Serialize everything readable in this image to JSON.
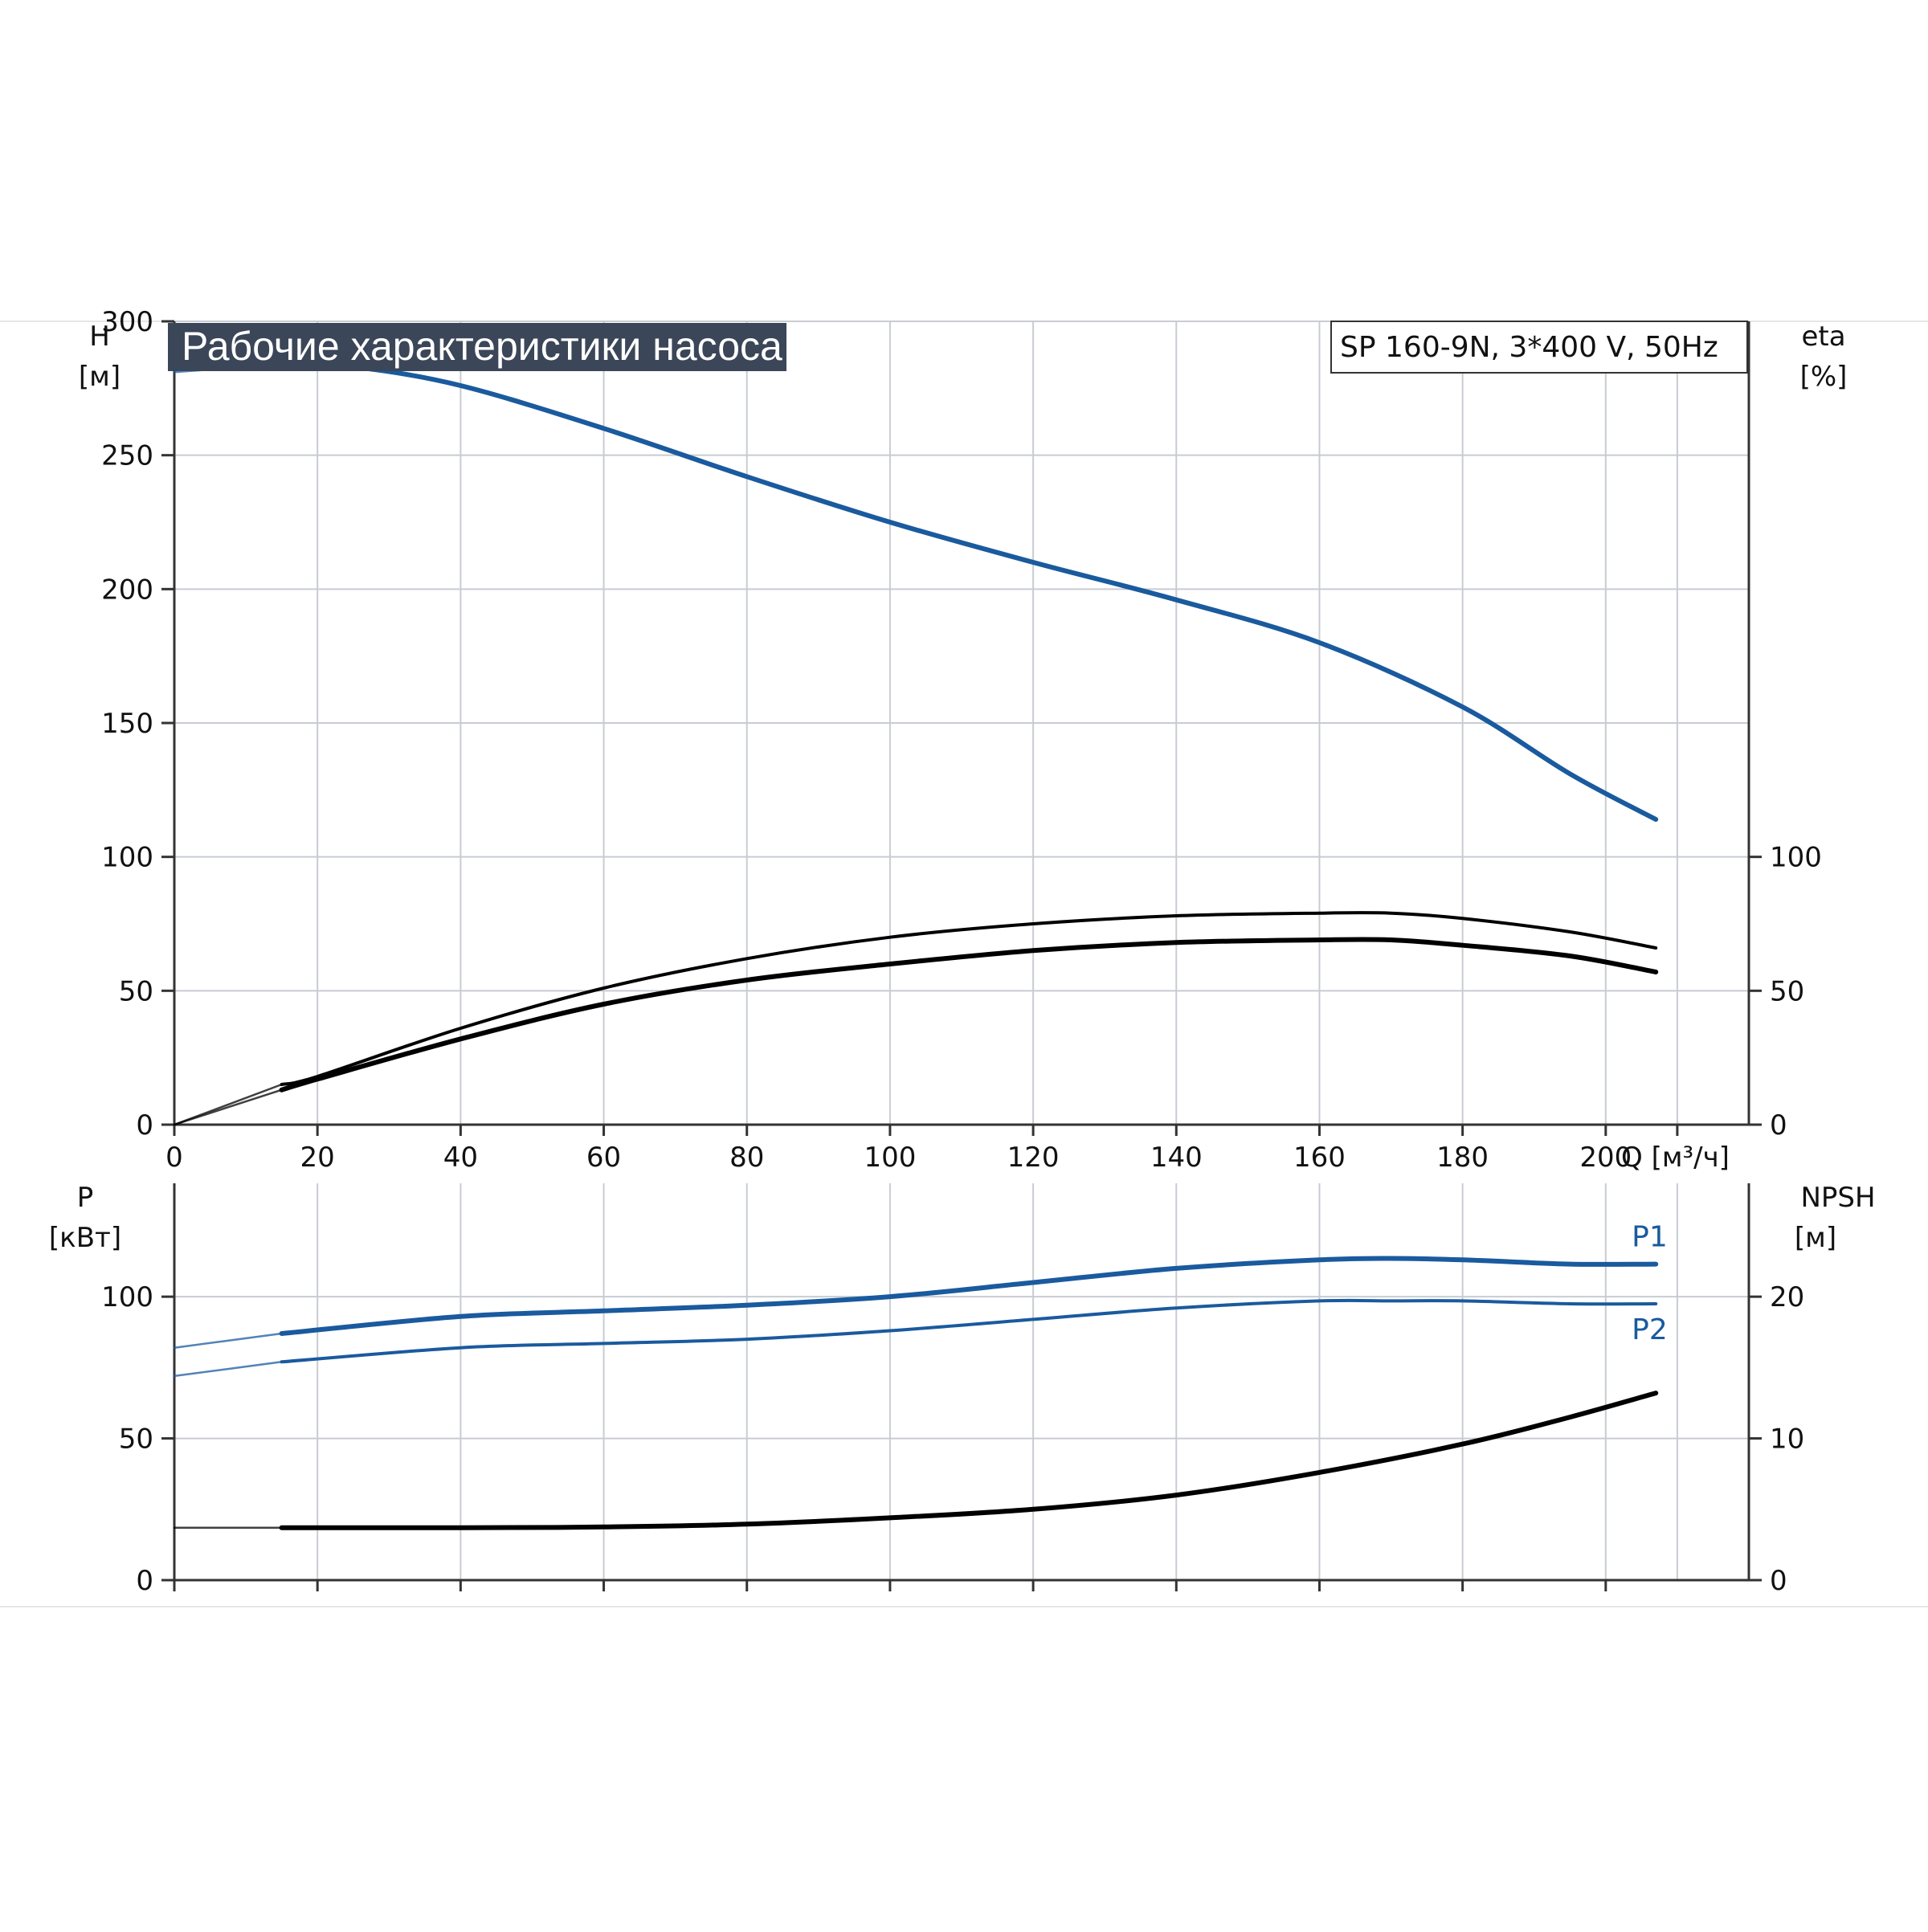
{
  "chart_data": [
    {
      "type": "line",
      "title": "Рабочие характеристики насоса",
      "model_label": "SP 160-9N, 3*400 V, 50Hz",
      "xlabel": "Q [м³/ч]",
      "xlim": [
        0,
        220
      ],
      "x_ticks": [
        "0",
        "20",
        "40",
        "60",
        "80",
        "100",
        "120",
        "140",
        "160",
        "180",
        "200"
      ],
      "y_left": {
        "label_line1": "H",
        "label_line2": "[м]",
        "lim": [
          0,
          300
        ],
        "ticks": [
          "0",
          "50",
          "100",
          "150",
          "200",
          "250",
          "300"
        ]
      },
      "y_right": {
        "label_line1": "eta",
        "label_line2": "[%]",
        "lim": [
          0,
          300
        ],
        "ticks": [
          "0",
          "50",
          "100"
        ]
      },
      "grid": true,
      "series": [
        {
          "name": "",
          "axis": "left",
          "color": "#1a5a9e",
          "points": [
            [
              0,
              281
            ],
            [
              15,
              284
            ],
            [
              25,
              283
            ],
            [
              40,
              276
            ],
            [
              60,
              260
            ],
            [
              80,
              242
            ],
            [
              100,
              225
            ],
            [
              120,
              210
            ],
            [
              140,
              196
            ],
            [
              160,
              180
            ],
            [
              180,
              156
            ],
            [
              195,
              131
            ],
            [
              207,
              114
            ]
          ]
        },
        {
          "name": "",
          "axis": "right",
          "color": "#000000",
          "points": [
            [
              0,
              0
            ],
            [
              15,
              15
            ],
            [
              20,
              18
            ],
            [
              40,
              36
            ],
            [
              60,
              51
            ],
            [
              80,
              62
            ],
            [
              100,
              70
            ],
            [
              120,
              75
            ],
            [
              140,
              78
            ],
            [
              160,
              79
            ],
            [
              170,
              79
            ],
            [
              180,
              77
            ],
            [
              195,
              72
            ],
            [
              207,
              66
            ]
          ]
        },
        {
          "name": "",
          "axis": "right",
          "color": "#000000",
          "points": [
            [
              0,
              0
            ],
            [
              15,
              13
            ],
            [
              20,
              17
            ],
            [
              40,
              32
            ],
            [
              60,
              45
            ],
            [
              80,
              54
            ],
            [
              100,
              60
            ],
            [
              120,
              65
            ],
            [
              140,
              68
            ],
            [
              160,
              69
            ],
            [
              170,
              69
            ],
            [
              180,
              67
            ],
            [
              195,
              63
            ],
            [
              207,
              57
            ]
          ]
        }
      ]
    },
    {
      "type": "line",
      "xlim": [
        0,
        220
      ],
      "y_left": {
        "label_line1": "P",
        "label_line2": "[кВт]",
        "lim": [
          0,
          140
        ],
        "ticks": [
          "0",
          "50",
          "100"
        ]
      },
      "y_right": {
        "label_line1": "NPSH",
        "label_line2": "[м]",
        "lim": [
          0,
          28
        ],
        "ticks": [
          "0",
          "10",
          "20"
        ]
      },
      "grid": true,
      "series": [
        {
          "name": "P1",
          "axis": "left",
          "color": "#1a5a9e",
          "points": [
            [
              0,
              82
            ],
            [
              15,
              87
            ],
            [
              40,
              93
            ],
            [
              60,
              95
            ],
            [
              80,
              97
            ],
            [
              100,
              100
            ],
            [
              120,
              105
            ],
            [
              140,
              110
            ],
            [
              160,
              113
            ],
            [
              170,
              113.5
            ],
            [
              180,
              113
            ],
            [
              195,
              111.5
            ],
            [
              207,
              111.5
            ]
          ]
        },
        {
          "name": "P2",
          "axis": "left",
          "color": "#1a5a9e",
          "points": [
            [
              0,
              72
            ],
            [
              15,
              77
            ],
            [
              40,
              82
            ],
            [
              60,
              83.5
            ],
            [
              80,
              85
            ],
            [
              100,
              88
            ],
            [
              120,
              92
            ],
            [
              140,
              96
            ],
            [
              160,
              98.5
            ],
            [
              170,
              98.5
            ],
            [
              180,
              98.5
            ],
            [
              195,
              97.5
            ],
            [
              207,
              97.5
            ]
          ]
        },
        {
          "name": "",
          "axis": "right",
          "color": "#000000",
          "points": [
            [
              0,
              3.7
            ],
            [
              15,
              3.7
            ],
            [
              40,
              3.7
            ],
            [
              60,
              3.75
            ],
            [
              80,
              3.95
            ],
            [
              100,
              4.4
            ],
            [
              120,
              5.0
            ],
            [
              140,
              6.0
            ],
            [
              160,
              7.6
            ],
            [
              180,
              9.6
            ],
            [
              195,
              11.5
            ],
            [
              207,
              13.2
            ]
          ]
        }
      ]
    }
  ]
}
